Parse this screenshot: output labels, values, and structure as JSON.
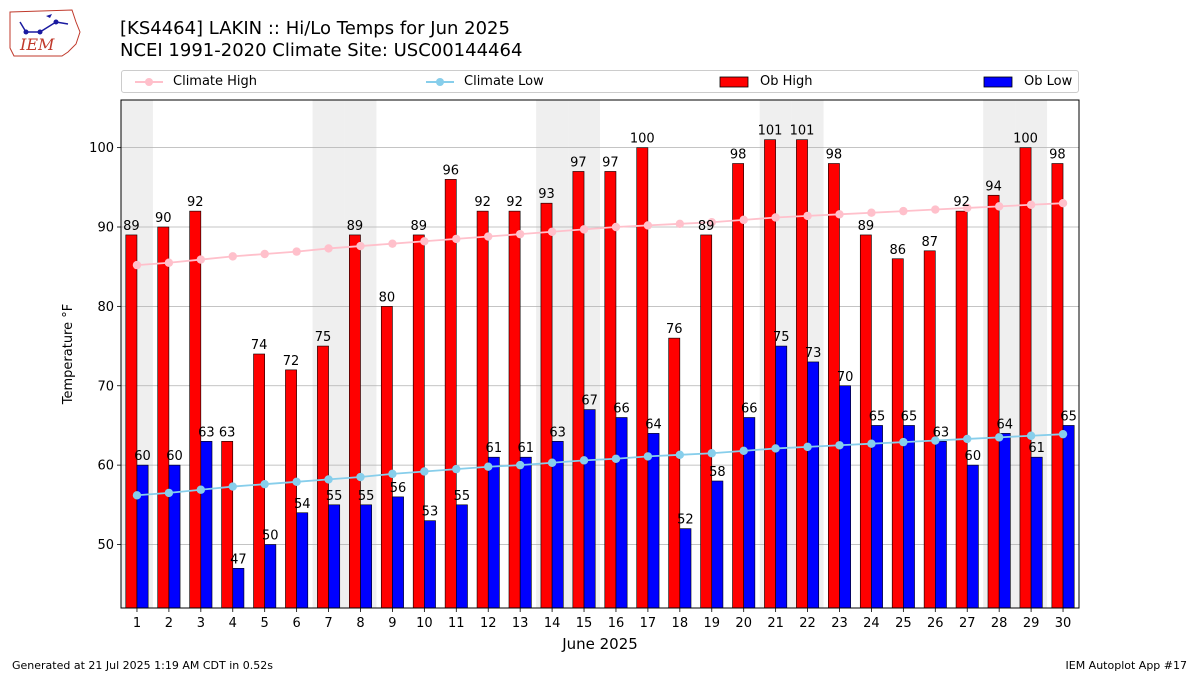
{
  "logo": {
    "text": "IEM"
  },
  "header": {
    "title": "[KS4464] LAKIN :: Hi/Lo Temps for Jun 2025",
    "subtitle": "NCEI 1991-2020 Climate Site: USC00144464"
  },
  "legend": {
    "items": [
      "Climate High",
      "Climate Low",
      "Ob High",
      "Ob Low"
    ]
  },
  "footer": {
    "left": "Generated at 21 Jul 2025 1:19 AM CDT in 0.52s",
    "right": "IEM Autoplot App #17"
  },
  "chart_data": {
    "type": "bar",
    "xlabel": "June 2025",
    "ylabel": "Temperature °F",
    "ylim": [
      42,
      106
    ],
    "yticks": [
      50,
      60,
      70,
      80,
      90,
      100
    ],
    "grid": "y",
    "legend_position": "top",
    "categories": [
      "1",
      "2",
      "3",
      "4",
      "5",
      "6",
      "7",
      "8",
      "9",
      "10",
      "11",
      "12",
      "13",
      "14",
      "15",
      "16",
      "17",
      "18",
      "19",
      "20",
      "21",
      "22",
      "23",
      "24",
      "25",
      "26",
      "27",
      "28",
      "29",
      "30"
    ],
    "weekend_days": [
      1,
      7,
      8,
      14,
      15,
      21,
      22,
      28,
      29
    ],
    "colors": {
      "ob_high": "#ff0000",
      "ob_low": "#0000ff",
      "climate_high": "#ffc0cb",
      "climate_low": "#87ceeb",
      "weekend_shade": "#efefef",
      "grid": "#b0b0b0"
    },
    "series": [
      {
        "name": "Ob High",
        "type": "bar",
        "values": [
          89,
          90,
          92,
          63,
          74,
          72,
          75,
          89,
          80,
          89,
          96,
          92,
          92,
          93,
          97,
          97,
          100,
          76,
          89,
          98,
          101,
          101,
          98,
          89,
          86,
          87,
          92,
          94,
          100,
          98
        ]
      },
      {
        "name": "Ob Low",
        "type": "bar",
        "values": [
          60,
          60,
          63,
          47,
          50,
          54,
          55,
          55,
          56,
          53,
          55,
          61,
          61,
          63,
          67,
          66,
          64,
          52,
          58,
          66,
          75,
          73,
          70,
          65,
          65,
          63,
          60,
          64,
          61,
          65
        ]
      },
      {
        "name": "Climate High",
        "type": "line",
        "values": [
          85.2,
          85.5,
          85.9,
          86.3,
          86.6,
          86.9,
          87.3,
          87.6,
          87.9,
          88.2,
          88.5,
          88.8,
          89.1,
          89.4,
          89.7,
          90.0,
          90.2,
          90.4,
          90.6,
          90.9,
          91.2,
          91.4,
          91.6,
          91.8,
          92.0,
          92.2,
          92.4,
          92.6,
          92.8,
          93.0
        ]
      },
      {
        "name": "Climate Low",
        "type": "line",
        "values": [
          56.2,
          56.5,
          56.9,
          57.3,
          57.6,
          57.9,
          58.2,
          58.5,
          58.9,
          59.2,
          59.5,
          59.8,
          60.0,
          60.3,
          60.6,
          60.8,
          61.1,
          61.3,
          61.5,
          61.8,
          62.1,
          62.3,
          62.5,
          62.7,
          62.9,
          63.1,
          63.3,
          63.5,
          63.7,
          63.9
        ]
      }
    ]
  }
}
